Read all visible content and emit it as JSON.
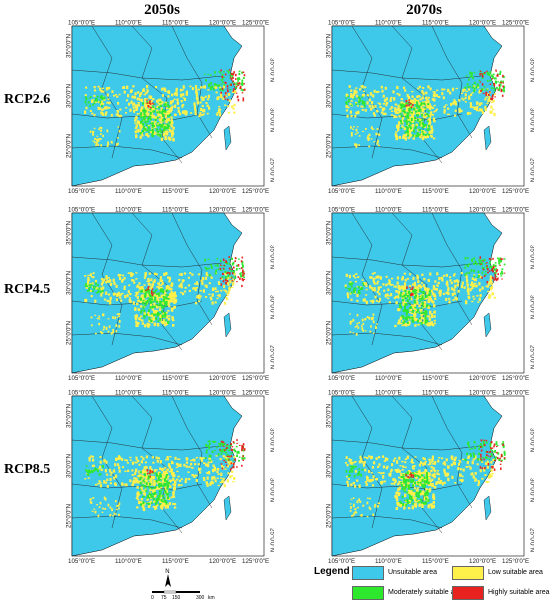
{
  "columns": [
    "2050s",
    "2070s"
  ],
  "rows": [
    "RCP2.6",
    "RCP4.5",
    "RCP8.5"
  ],
  "axes": {
    "lon_ticks": [
      "105°0'0\"E",
      "110°0'0\"E",
      "115°0'0\"E",
      "120°0'0\"E",
      "125°0'0\"E"
    ],
    "lat_ticks": [
      "35°0'0\"N",
      "30°0'0\"N",
      "25°0'0\"N"
    ]
  },
  "legend": {
    "title": "Legend",
    "items": [
      {
        "label": "Unsuitable area",
        "color": "#3ec8ea"
      },
      {
        "label": "Low suitable area",
        "color": "#fff04a"
      },
      {
        "label": "Moderately suitable area",
        "color": "#2ee82e"
      },
      {
        "label": "Highly suitable area",
        "color": "#e8231f"
      }
    ]
  },
  "north_arrow": "N",
  "scale_bar": {
    "ticks": [
      "0",
      "75",
      "150",
      "300"
    ],
    "unit": "km"
  }
}
